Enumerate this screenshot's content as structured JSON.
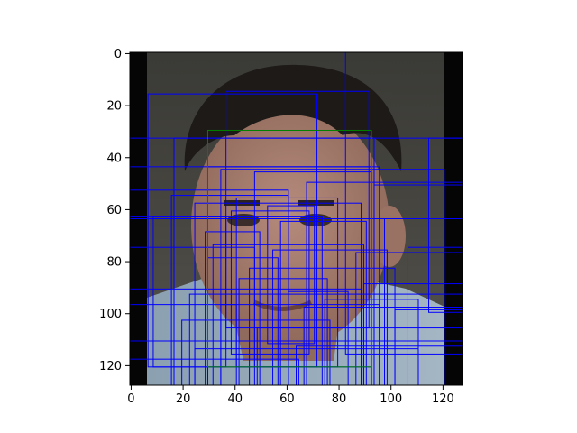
{
  "figure": {
    "image_description_icon": "photo-face",
    "x_ticks": [
      "0",
      "20",
      "40",
      "60",
      "80",
      "100",
      "120"
    ],
    "y_ticks": [
      "0",
      "20",
      "40",
      "60",
      "80",
      "100",
      "120"
    ],
    "x_range": [
      -0.5,
      127.5
    ],
    "y_range": [
      127.5,
      -0.5
    ],
    "box_color_main": "#0000ff",
    "box_color_highlight": "#008000"
  },
  "highlight_box": [
    29.5,
    29.5,
    92.5,
    120.5
  ],
  "boxes": [
    [
      6.5,
      15.5,
      71.5,
      120.5
    ],
    [
      36.5,
      14.5,
      91.5,
      105.5
    ],
    [
      82.5,
      -0.5,
      127.5,
      115.5
    ],
    [
      -0.5,
      32.5,
      127.5,
      127.5
    ],
    [
      16.5,
      32.5,
      93.5,
      127.5
    ],
    [
      -0.5,
      43.5,
      92.5,
      127.5
    ],
    [
      29.5,
      43.5,
      95.5,
      127.5
    ],
    [
      34.5,
      44.5,
      120.5,
      127.5
    ],
    [
      47.5,
      45.5,
      92.5,
      120.5
    ],
    [
      67.5,
      49.5,
      127.5,
      127.5
    ],
    [
      93.5,
      50.5,
      127.5,
      127.5
    ],
    [
      -0.5,
      52.5,
      60.5,
      127.5
    ],
    [
      15.5,
      54.5,
      60.5,
      127.5
    ],
    [
      -0.5,
      62.5,
      73.5,
      127.5
    ],
    [
      -0.5,
      63.5,
      127.5,
      127.5
    ],
    [
      24.5,
      57.5,
      88.5,
      127.5
    ],
    [
      40.5,
      55.5,
      79.5,
      120.5
    ],
    [
      52.5,
      58.5,
      70.5,
      111.5
    ],
    [
      -0.5,
      74.5,
      47.5,
      127.5
    ],
    [
      31.5,
      73.5,
      89.5,
      127.5
    ],
    [
      54.5,
      75.5,
      98.5,
      127.5
    ],
    [
      86.5,
      76.5,
      127.5,
      127.5
    ],
    [
      106.5,
      74.5,
      127.5,
      127.5
    ],
    [
      -0.5,
      80.5,
      60.5,
      127.5
    ],
    [
      29.5,
      78.5,
      56.5,
      127.5
    ],
    [
      45.5,
      82.5,
      101.5,
      127.5
    ],
    [
      89.5,
      88.5,
      127.5,
      127.5
    ],
    [
      -0.5,
      90.5,
      88.5,
      127.5
    ],
    [
      22.5,
      92.5,
      127.5,
      127.5
    ],
    [
      -0.5,
      96.5,
      40.5,
      127.5
    ],
    [
      34.5,
      96.5,
      95.5,
      127.5
    ],
    [
      66.5,
      97.5,
      127.5,
      127.5
    ],
    [
      19.5,
      102.5,
      76.5,
      127.5
    ],
    [
      48.5,
      105.5,
      127.5,
      127.5
    ],
    [
      -0.5,
      110.5,
      127.5,
      127.5
    ],
    [
      24.5,
      113.5,
      110.5,
      127.5
    ],
    [
      -0.5,
      117.5,
      64.5,
      127.5
    ],
    [
      63.5,
      112.5,
      127.5,
      127.5
    ],
    [
      8.5,
      62.5,
      36.5,
      120.5
    ],
    [
      38.5,
      60.5,
      68.5,
      115.5
    ],
    [
      57.5,
      64.5,
      90.5,
      127.5
    ],
    [
      97.5,
      63.5,
      127.5,
      127.5
    ],
    [
      114.5,
      32.5,
      127.5,
      99.5
    ],
    [
      41.5,
      86.5,
      75.5,
      127.5
    ],
    [
      28.5,
      68.5,
      49.5,
      127.5
    ],
    [
      60.5,
      91.5,
      83.5,
      127.5
    ],
    [
      74.5,
      94.5,
      110.5,
      127.5
    ],
    [
      101.5,
      98.5,
      127.5,
      127.5
    ]
  ]
}
